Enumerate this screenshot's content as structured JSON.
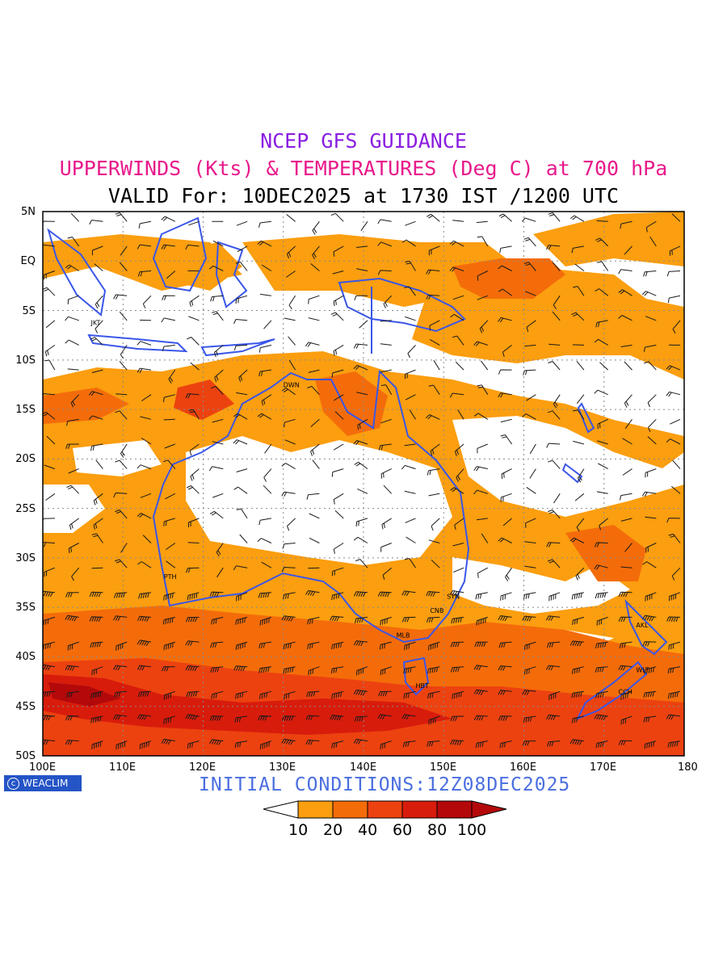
{
  "titles": {
    "line1": "NCEP GFS GUIDANCE",
    "line2": "UPPERWINDS (Kts) & TEMPERATURES (Deg C) at 700 hPa",
    "line3": "VALID For: 10DEC2025 at 1730 IST /1200 UTC"
  },
  "colors": {
    "title1": "#8a1de0",
    "title2": "#e8198b",
    "coast": "#3a56e8",
    "shade_10_20": "#fb9e0f",
    "shade_20_40": "#f46c0a",
    "shade_40_60": "#ec4210",
    "shade_60_80": "#d81c0c",
    "shade_80_100": "#b4090b"
  },
  "axes": {
    "lat_labels": [
      "5N",
      "EQ",
      "5S",
      "10S",
      "15S",
      "20S",
      "25S",
      "30S",
      "35S",
      "40S",
      "45S",
      "50S"
    ],
    "lon_labels": [
      "100E",
      "110E",
      "120E",
      "130E",
      "140E",
      "150E",
      "160E",
      "170E",
      "180"
    ]
  },
  "stations": [
    {
      "code": "JKT",
      "lon": 106.8,
      "lat": -6.2
    },
    {
      "code": "DWN",
      "lon": 130.8,
      "lat": -12.5
    },
    {
      "code": "PTH",
      "lon": 115.9,
      "lat": -31.9
    },
    {
      "code": "SYN",
      "lon": 151.2,
      "lat": -33.9
    },
    {
      "code": "CNB",
      "lon": 149.1,
      "lat": -35.3
    },
    {
      "code": "MLB",
      "lon": 144.9,
      "lat": -37.8
    },
    {
      "code": "HBT",
      "lon": 147.3,
      "lat": -42.9
    },
    {
      "code": "AKL",
      "lon": 174.8,
      "lat": -36.8
    },
    {
      "code": "WLT",
      "lon": 174.8,
      "lat": -41.3
    },
    {
      "code": "CCH",
      "lon": 172.6,
      "lat": -43.5
    }
  ],
  "logo": "WEACLIM",
  "initial_conditions": "INITIAL  CONDITIONS:12Z08DEC2025",
  "legend": {
    "levels": [
      "10",
      "20",
      "40",
      "60",
      "80",
      "100"
    ]
  }
}
